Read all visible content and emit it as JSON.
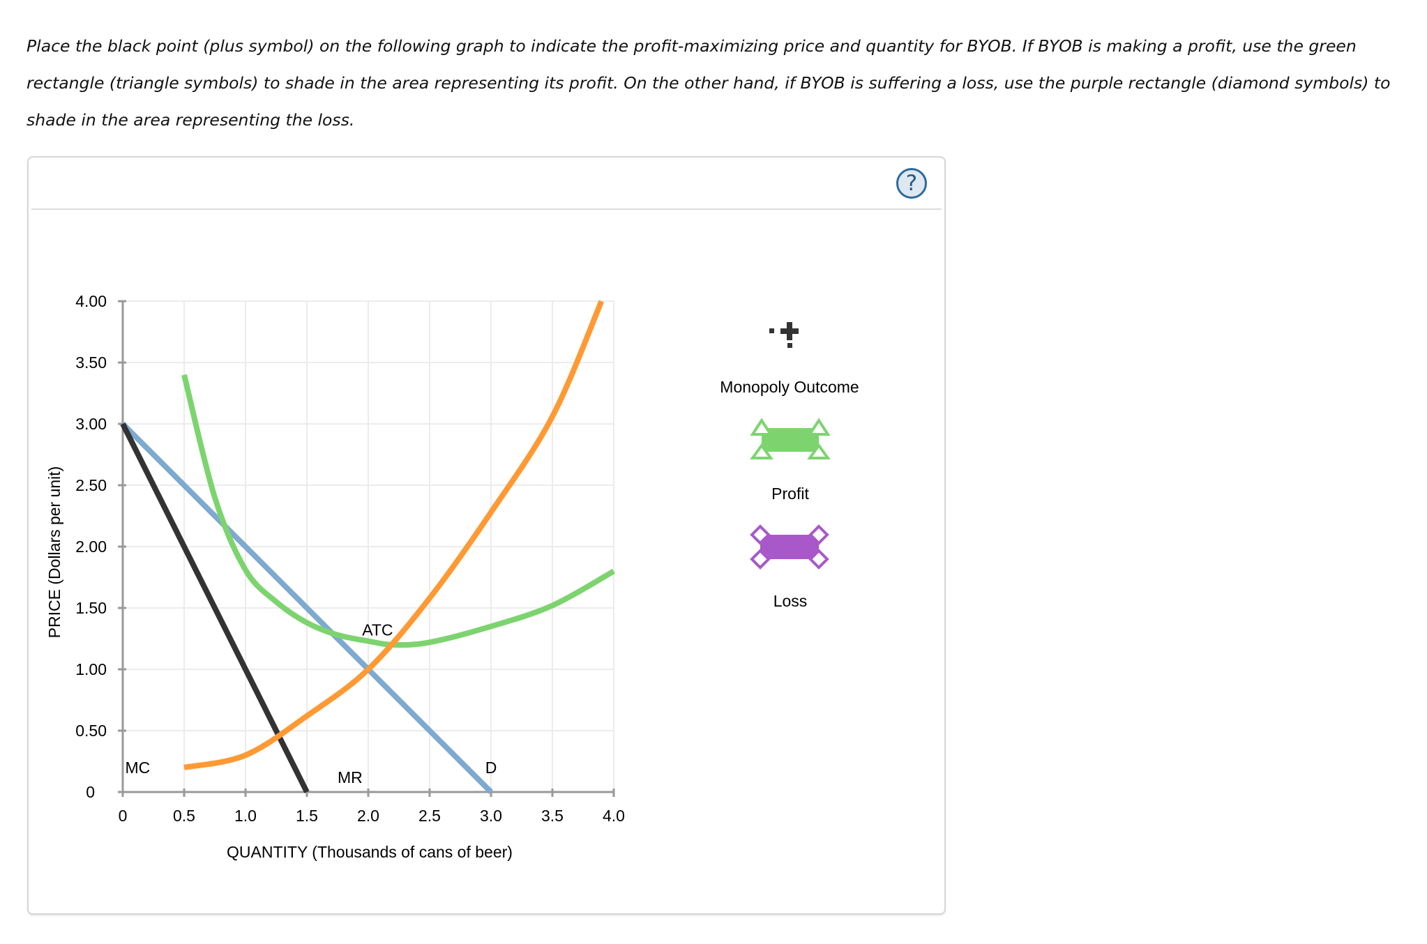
{
  "instructions": {
    "text": "Place the black point (plus symbol) on the following graph to indicate the profit-maximizing price and quantity for BYOB. If BYOB is making a profit, use the green rectangle (triangle symbols) to shade in the area representing its profit. On the other hand, if BYOB is suffering a loss, use the purple rectangle (diamond symbols) to shade in the area representing the loss."
  },
  "panel": {
    "help_label": "?"
  },
  "legend": {
    "items": [
      {
        "label": "Monopoly Outcome",
        "symbol": "plus-point",
        "color": "#333333"
      },
      {
        "label": "Profit",
        "symbol": "rectangle-triangles",
        "color": "#7dd46f"
      },
      {
        "label": "Loss",
        "symbol": "rectangle-diamonds",
        "color": "#a958c9"
      }
    ]
  },
  "chart_data": {
    "type": "line",
    "title": "",
    "xlabel": "QUANTITY (Thousands of cans of beer)",
    "ylabel": "PRICE (Dollars per unit)",
    "xlim": [
      0,
      4.0
    ],
    "ylim": [
      0,
      4.0
    ],
    "grid": true,
    "x_ticks": [
      "0",
      "0.5",
      "1.0",
      "1.5",
      "2.0",
      "2.5",
      "3.0",
      "3.5",
      "4.0"
    ],
    "y_ticks": [
      "0",
      "0.50",
      "1.00",
      "1.50",
      "2.00",
      "2.50",
      "3.00",
      "3.50",
      "4.00"
    ],
    "legend_position": "right",
    "series": [
      {
        "name": "D",
        "color": "#7eaad0",
        "points": [
          [
            0,
            3.0
          ],
          [
            3.0,
            0
          ]
        ]
      },
      {
        "name": "MR",
        "color": "#333333",
        "points": [
          [
            0,
            3.0
          ],
          [
            1.5,
            0
          ]
        ]
      },
      {
        "name": "MC",
        "color": "#ff9933",
        "points": [
          [
            0.5,
            0.2
          ],
          [
            1.0,
            0.3
          ],
          [
            1.5,
            0.62
          ],
          [
            2.0,
            1.0
          ],
          [
            2.5,
            1.58
          ],
          [
            3.0,
            2.28
          ],
          [
            3.5,
            3.06
          ],
          [
            3.9,
            4.0
          ]
        ]
      },
      {
        "name": "ATC",
        "color": "#7dd46f",
        "points": [
          [
            0.5,
            3.4
          ],
          [
            0.75,
            2.4
          ],
          [
            1.0,
            1.81
          ],
          [
            1.25,
            1.55
          ],
          [
            1.5,
            1.38
          ],
          [
            1.75,
            1.28
          ],
          [
            2.0,
            1.23
          ],
          [
            2.2,
            1.2
          ],
          [
            2.5,
            1.22
          ],
          [
            3.0,
            1.35
          ],
          [
            3.5,
            1.52
          ],
          [
            4.0,
            1.8
          ]
        ]
      }
    ],
    "annotations": [
      {
        "text": "MC",
        "x": 0.02,
        "y": 0.2
      },
      {
        "text": "MR",
        "x": 1.75,
        "y": 0.12
      },
      {
        "text": "D",
        "x": 3.0,
        "y": 0.2
      },
      {
        "text": "ATC",
        "x": 1.95,
        "y": 1.32
      }
    ]
  }
}
